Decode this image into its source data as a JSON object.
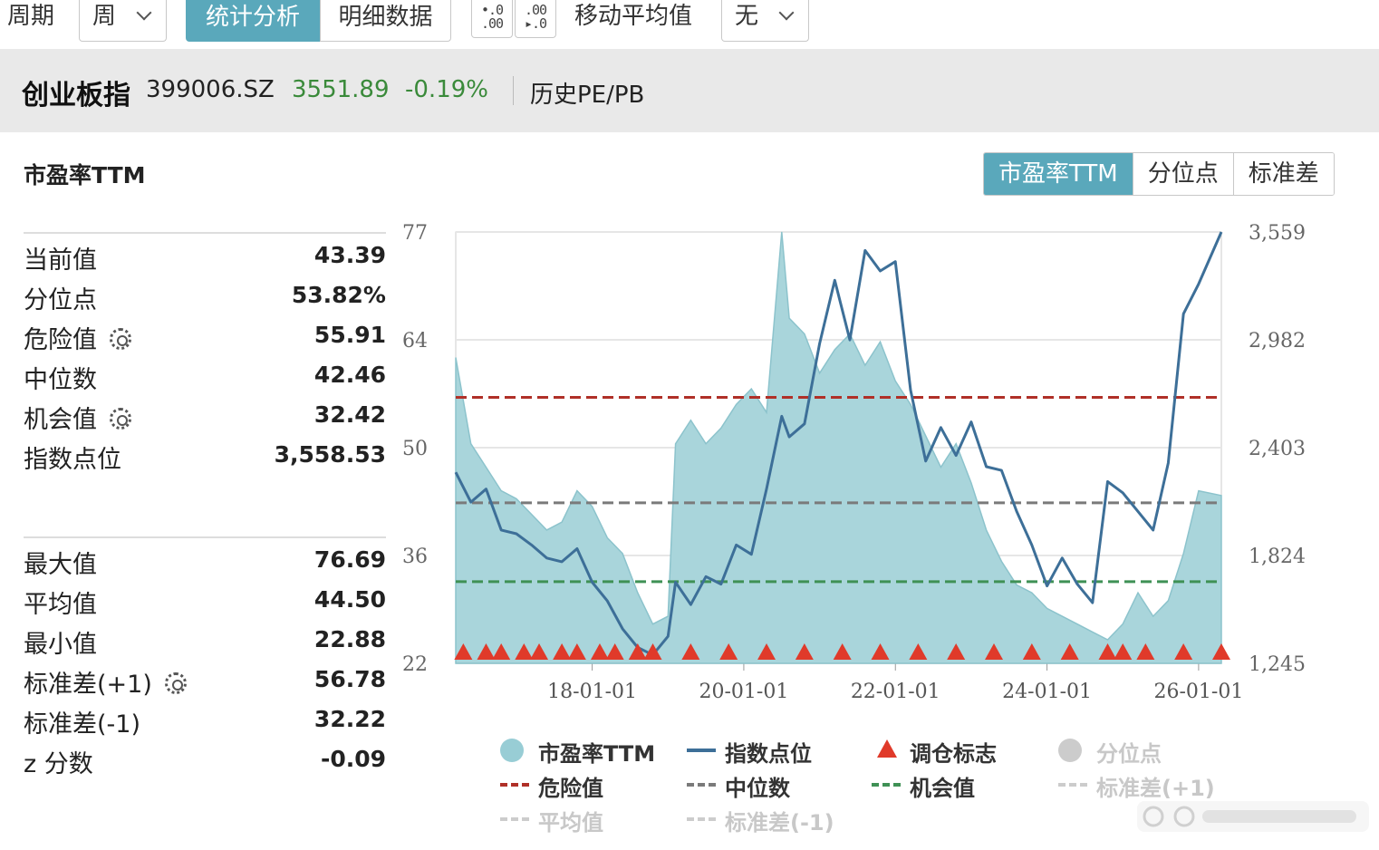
{
  "toolbar": {
    "period_label": "周期",
    "period_value": "周",
    "tab_stats": "统计分析",
    "tab_detail": "明细数据",
    "dec_decrease": ".0\n.00",
    "dec_increase": ".00\n.0",
    "ma_label": "移动平均值",
    "ma_value": "无"
  },
  "header": {
    "name": "创业板指",
    "code": "399006.SZ",
    "price": "3551.89",
    "change": "-0.19%",
    "link": "历史PE/PB",
    "price_color": "#3a8a3a"
  },
  "card": {
    "title": "市盈率TTM",
    "tabs": [
      {
        "label": "市盈率TTM",
        "active": true
      },
      {
        "label": "分位点",
        "active": false
      },
      {
        "label": "标准差",
        "active": false
      }
    ]
  },
  "stats": {
    "group1": [
      {
        "label": "当前值",
        "value": "43.39",
        "gear": false
      },
      {
        "label": "分位点",
        "value": "53.82%",
        "gear": false
      },
      {
        "label": "危险值",
        "value": "55.91",
        "gear": true
      },
      {
        "label": "中位数",
        "value": "42.46",
        "gear": false
      },
      {
        "label": "机会值",
        "value": "32.42",
        "gear": true
      },
      {
        "label": "指数点位",
        "value": "3,558.53",
        "gear": false
      }
    ],
    "group2": [
      {
        "label": "最大值",
        "value": "76.69",
        "gear": false
      },
      {
        "label": "平均值",
        "value": "44.50",
        "gear": false
      },
      {
        "label": "最小值",
        "value": "22.88",
        "gear": false
      },
      {
        "label": "标准差(+1)",
        "value": "56.78",
        "gear": true
      },
      {
        "label": "标准差(-1)",
        "value": "32.22",
        "gear": false
      },
      {
        "label": "z 分数",
        "value": "-0.09",
        "gear": false
      }
    ]
  },
  "legend": [
    {
      "label": "市盈率TTM",
      "kind": "dot",
      "color": "#98cdd5",
      "dim": false
    },
    {
      "label": "指数点位",
      "kind": "line",
      "color": "#3d6f98",
      "dim": false
    },
    {
      "label": "调仓标志",
      "kind": "triangle",
      "color": "#e03a2a",
      "dim": false
    },
    {
      "label": "分位点",
      "kind": "dot",
      "color": "#cccccc",
      "dim": true
    },
    {
      "label": "危险值",
      "kind": "dash",
      "color": "#b03028",
      "dim": false
    },
    {
      "label": "中位数",
      "kind": "dash",
      "color": "#7a7a7a",
      "dim": false
    },
    {
      "label": "机会值",
      "kind": "dash",
      "color": "#3f9155",
      "dim": false
    },
    {
      "label": "标准差(+1)",
      "kind": "dash",
      "color": "#cccccc",
      "dim": true
    },
    {
      "label": "平均值",
      "kind": "dash",
      "color": "#cccccc",
      "dim": true
    },
    {
      "label": "标准差(-1)",
      "kind": "dash",
      "color": "#cccccc",
      "dim": true
    }
  ],
  "chart_data": {
    "type": "area",
    "title": "",
    "x_ticks": [
      "18-01-01",
      "20-01-01",
      "22-01-01",
      "24-01-01",
      "26-01-01"
    ],
    "y_left_ticks": [
      "77",
      "64",
      "50",
      "36",
      "22"
    ],
    "y_left_range": [
      22,
      77
    ],
    "y_right_ticks": [
      "3,559",
      "2,982",
      "2,403",
      "1,824",
      "1,245"
    ],
    "y_right_range": [
      1245,
      3559
    ],
    "x_range": [
      "2016-03",
      "2026-04"
    ],
    "colors": {
      "pe": "#a9d5db",
      "index": "#3d6f98",
      "danger": "#b03028",
      "median": "#7a7a7a",
      "chance": "#3f9155",
      "marker": "#e03a2a"
    },
    "reference_lines": {
      "danger": 55.91,
      "median": 42.46,
      "chance": 32.42
    },
    "series": [
      {
        "name": "市盈率TTM",
        "axis": "left",
        "t": [
          2016.2,
          2016.4,
          2016.6,
          2016.8,
          2017.0,
          2017.2,
          2017.4,
          2017.6,
          2017.8,
          2018.0,
          2018.2,
          2018.4,
          2018.6,
          2018.8,
          2019.0,
          2019.1,
          2019.3,
          2019.5,
          2019.7,
          2019.9,
          2020.1,
          2020.3,
          2020.5,
          2020.6,
          2020.8,
          2021.0,
          2021.2,
          2021.4,
          2021.6,
          2021.8,
          2022.0,
          2022.2,
          2022.4,
          2022.6,
          2022.8,
          2023.0,
          2023.2,
          2023.4,
          2023.6,
          2023.8,
          2024.0,
          2024.2,
          2024.4,
          2024.6,
          2024.8,
          2025.0,
          2025.2,
          2025.4,
          2025.6,
          2025.8,
          2026.0,
          2026.3
        ],
        "v": [
          61,
          50,
          47,
          44,
          43,
          41,
          39,
          40,
          44,
          42,
          38,
          36,
          31,
          27,
          28,
          50,
          53,
          50,
          52,
          55,
          57,
          54,
          77,
          66,
          64,
          59,
          62,
          64,
          60,
          63,
          58,
          55,
          51,
          47,
          50,
          45,
          39,
          35,
          32,
          31,
          29,
          28,
          27,
          26,
          25,
          27,
          31,
          28,
          30,
          36,
          44,
          43.4
        ]
      },
      {
        "name": "指数点位",
        "axis": "right",
        "t": [
          2016.2,
          2016.4,
          2016.6,
          2016.8,
          2017.0,
          2017.2,
          2017.4,
          2017.6,
          2017.8,
          2018.0,
          2018.2,
          2018.4,
          2018.6,
          2018.8,
          2019.0,
          2019.1,
          2019.3,
          2019.5,
          2019.7,
          2019.9,
          2020.1,
          2020.3,
          2020.5,
          2020.6,
          2020.8,
          2021.0,
          2021.2,
          2021.4,
          2021.6,
          2021.8,
          2022.0,
          2022.2,
          2022.4,
          2022.6,
          2022.8,
          2023.0,
          2023.2,
          2023.4,
          2023.6,
          2023.8,
          2024.0,
          2024.2,
          2024.4,
          2024.6,
          2024.8,
          2025.0,
          2025.2,
          2025.4,
          2025.6,
          2025.8,
          2026.0,
          2026.3
        ],
        "v": [
          2270,
          2110,
          2180,
          1960,
          1940,
          1880,
          1810,
          1790,
          1860,
          1680,
          1580,
          1430,
          1330,
          1290,
          1390,
          1680,
          1560,
          1710,
          1670,
          1880,
          1830,
          2180,
          2570,
          2460,
          2530,
          2960,
          3300,
          2980,
          3460,
          3350,
          3400,
          2710,
          2330,
          2510,
          2360,
          2540,
          2300,
          2280,
          2060,
          1880,
          1660,
          1810,
          1670,
          1570,
          2220,
          2160,
          2060,
          1960,
          2320,
          3120,
          3280,
          3559
        ]
      }
    ],
    "markers": [
      2016.3,
      2016.6,
      2016.8,
      2017.1,
      2017.3,
      2017.6,
      2017.8,
      2018.1,
      2018.3,
      2018.6,
      2018.8,
      2019.3,
      2019.8,
      2020.3,
      2020.8,
      2021.3,
      2021.8,
      2022.3,
      2022.8,
      2023.3,
      2023.8,
      2024.3,
      2024.8,
      2025.0,
      2025.3,
      2025.8,
      2026.3
    ]
  }
}
